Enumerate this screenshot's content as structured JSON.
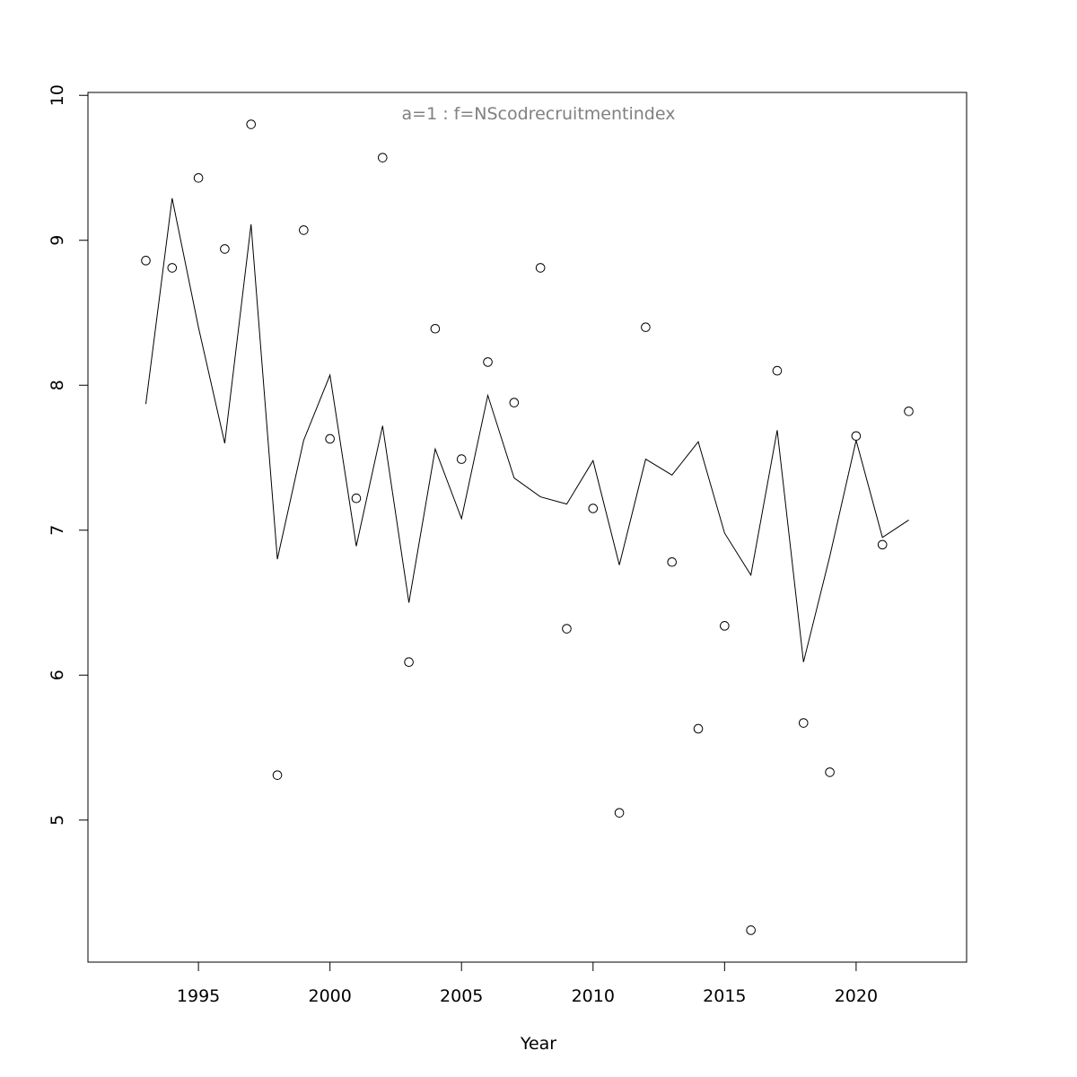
{
  "chart_data": {
    "type": "scatter",
    "title": "",
    "annotation": "a=1  :  f=NScodrecruitmentindex",
    "xlabel": "Year",
    "ylabel": "",
    "xlim": [
      1990.8,
      2024.2
    ],
    "ylim": [
      4.02,
      10.02
    ],
    "x_ticks": [
      1995,
      2000,
      2005,
      2010,
      2015,
      2020
    ],
    "y_ticks": [
      5,
      6,
      7,
      8,
      9,
      10
    ],
    "grid": false,
    "legend": "none",
    "series": [
      {
        "type": "points",
        "marker": "open-circle",
        "x": [
          1993,
          1994,
          1995,
          1996,
          1997,
          1998,
          1999,
          2000,
          2001,
          2002,
          2003,
          2004,
          2005,
          2006,
          2007,
          2008,
          2009,
          2010,
          2011,
          2012,
          2013,
          2014,
          2015,
          2016,
          2017,
          2018,
          2019,
          2020,
          2021,
          2022
        ],
        "y": [
          8.86,
          8.81,
          9.43,
          8.94,
          9.8,
          5.31,
          9.07,
          7.63,
          7.22,
          9.57,
          6.09,
          8.39,
          7.49,
          8.16,
          7.88,
          8.81,
          6.32,
          7.15,
          5.05,
          8.4,
          6.78,
          5.63,
          6.34,
          4.24,
          8.1,
          5.67,
          5.33,
          7.65,
          6.9,
          7.82
        ]
      },
      {
        "type": "line",
        "x": [
          1993,
          1994,
          1995,
          1996,
          1997,
          1998,
          1999,
          2000,
          2001,
          2002,
          2003,
          2004,
          2005,
          2006,
          2007,
          2008,
          2009,
          2010,
          2011,
          2012,
          2013,
          2014,
          2015,
          2016,
          2017,
          2018,
          2019,
          2020,
          2021,
          2022
        ],
        "y": [
          7.87,
          9.29,
          8.4,
          7.6,
          9.11,
          6.8,
          7.62,
          8.07,
          6.89,
          7.72,
          6.5,
          7.56,
          7.08,
          7.93,
          7.36,
          7.23,
          7.18,
          7.48,
          6.76,
          7.49,
          7.38,
          7.61,
          6.98,
          6.69,
          7.69,
          6.09,
          6.82,
          7.62,
          6.95,
          7.07
        ]
      }
    ]
  },
  "colors": {
    "axis": "#000000",
    "marks": "#000000",
    "annotation": "#808080"
  }
}
